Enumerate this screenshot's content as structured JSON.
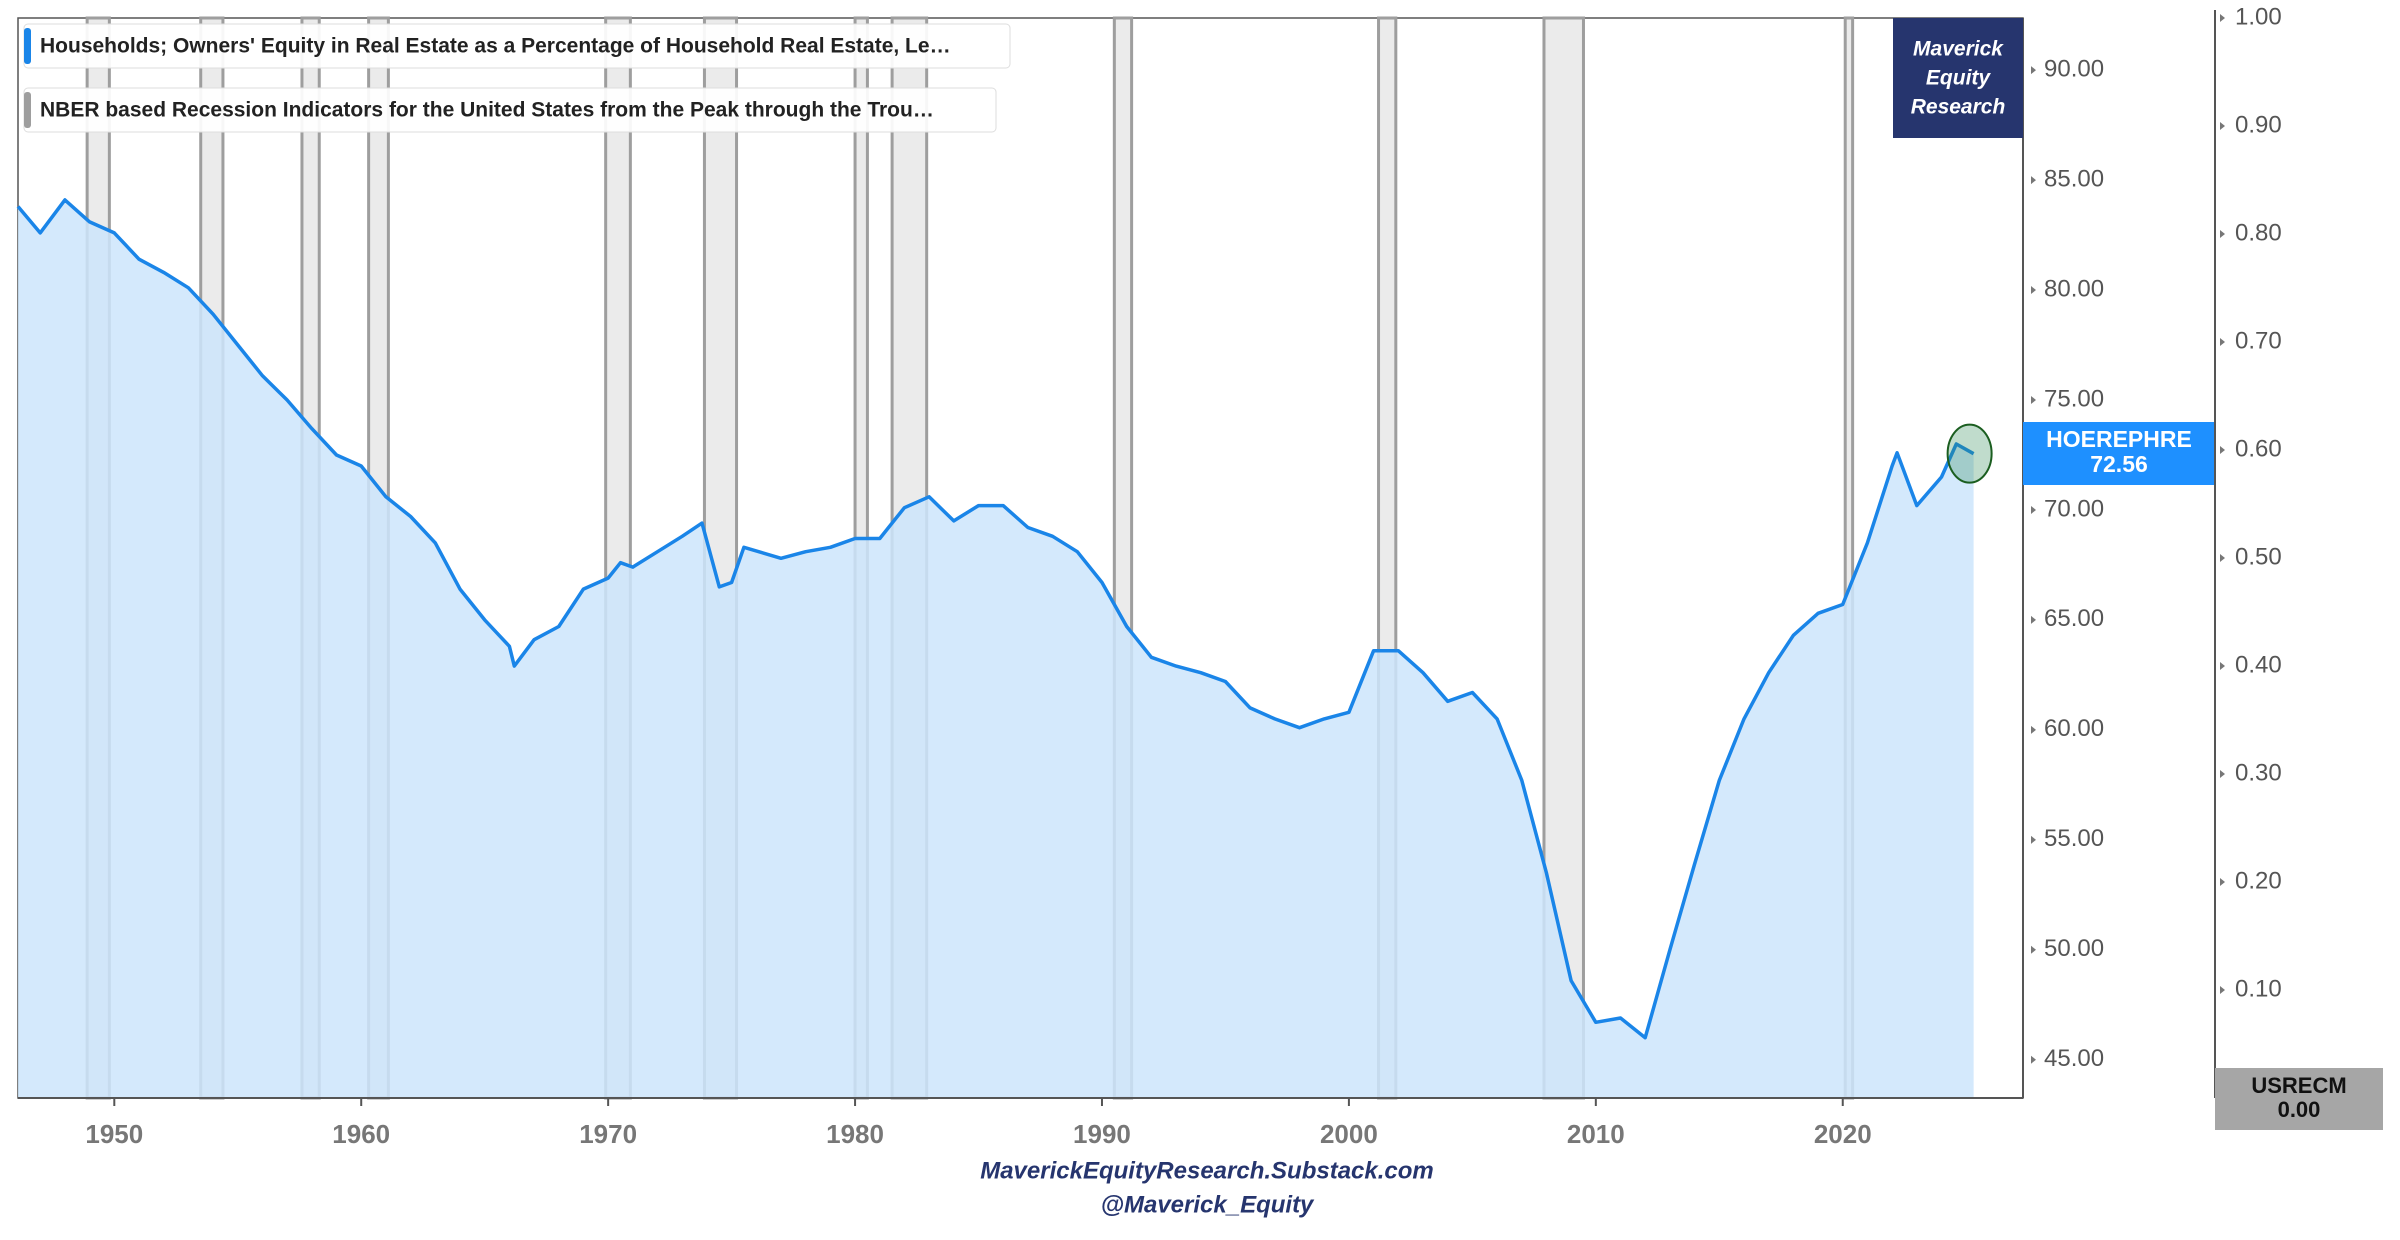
{
  "chart_data": {
    "type": "area",
    "series": [
      {
        "name": "Households; Owners' Equity in Real Estate as a Percentage of Household Real Estate, Le…",
        "color": "#1a85e8",
        "fill": "#cde5fb",
        "x": [
          1946.1,
          1947,
          1948,
          1949,
          1950,
          1951,
          1952,
          1953,
          1954,
          1955,
          1956,
          1957,
          1958,
          1959,
          1960,
          1961,
          1962,
          1963,
          1964,
          1965,
          1966,
          1966.2,
          1967,
          1968,
          1969,
          1970,
          1970.5,
          1971,
          1972,
          1973,
          1973.8,
          1974.5,
          1975,
          1975.5,
          1977,
          1978,
          1979,
          1980,
          1981,
          1982,
          1983,
          1984,
          1985,
          1986,
          1987,
          1988,
          1989,
          1990,
          1991,
          1992,
          1993,
          1994,
          1995,
          1996,
          1997,
          1998,
          1999,
          2000,
          2001,
          2002,
          2003,
          2004,
          2005,
          2006,
          2007,
          2008,
          2009,
          2010,
          2011,
          2012,
          2013,
          2014,
          2015,
          2016,
          2017,
          2018,
          2019,
          2020,
          2021,
          2022,
          2022.2,
          2023,
          2024,
          2024.6,
          2025.3
        ],
        "values": [
          83.8,
          82.6,
          84.1,
          83.1,
          82.6,
          81.4,
          80.8,
          80.1,
          78.9,
          77.5,
          76.1,
          75.0,
          73.7,
          72.5,
          72.0,
          70.6,
          69.7,
          68.5,
          66.4,
          65.0,
          63.8,
          62.9,
          64.1,
          64.7,
          66.4,
          66.9,
          67.6,
          67.4,
          68.1,
          68.8,
          69.4,
          66.5,
          66.7,
          68.3,
          67.8,
          68.1,
          68.3,
          68.7,
          68.7,
          70.1,
          70.6,
          69.5,
          70.2,
          70.2,
          69.2,
          68.8,
          68.1,
          66.7,
          64.7,
          63.3,
          62.9,
          62.6,
          62.2,
          61.0,
          60.5,
          60.1,
          60.5,
          60.8,
          63.6,
          63.6,
          62.6,
          61.3,
          61.7,
          60.5,
          57.7,
          53.5,
          48.6,
          46.7,
          46.9,
          46.0,
          50.0,
          53.9,
          57.7,
          60.5,
          62.6,
          64.3,
          65.3,
          65.7,
          68.5,
          72.0,
          72.6,
          70.2,
          71.5,
          73.0,
          72.56
        ]
      },
      {
        "name": "NBER based Recession Indicators for the United States from the Peak through the Trou…",
        "color": "#9e9e9e",
        "fill": "#ebebeb",
        "axis": "y2",
        "starts": [
          1948.9,
          1953.5,
          1957.6,
          1960.3,
          1969.9,
          1973.9,
          1980.0,
          1981.5,
          1990.5,
          2001.2,
          2007.9,
          2020.1
        ],
        "ends": [
          1949.8,
          1954.4,
          1958.3,
          1961.1,
          1970.9,
          1975.2,
          1980.5,
          1982.9,
          1991.2,
          2001.9,
          2009.5,
          2020.4
        ],
        "values": [
          1,
          1,
          1,
          1,
          1,
          1,
          1,
          1,
          1,
          1,
          1,
          1
        ]
      }
    ],
    "last_value_labels": [
      {
        "id": "HOEREPHRE",
        "label": "72.56"
      },
      {
        "id": "USRECM",
        "label": "0.00"
      }
    ],
    "xlim": [
      1946.1,
      2027.3
    ],
    "xticks": [
      1950,
      1960,
      1970,
      1980,
      1990,
      2000,
      2010,
      2020
    ],
    "ylim": [
      43.26,
      92.37
    ],
    "yticks": [
      {
        "value": 45,
        "label": "45.00"
      },
      {
        "value": 50,
        "label": "50.00"
      },
      {
        "value": 55,
        "label": "55.00"
      },
      {
        "value": 60,
        "label": "60.00"
      },
      {
        "value": 65,
        "label": "65.00"
      },
      {
        "value": 70,
        "label": "70.00"
      },
      {
        "value": 75,
        "label": "75.00"
      },
      {
        "value": 80,
        "label": "80.00"
      },
      {
        "value": 85,
        "label": "85.00"
      },
      {
        "value": 90,
        "label": "90.00"
      }
    ],
    "y2lim": [
      0,
      1
    ],
    "y2ticks": [
      {
        "value": 0,
        "label": "0.00"
      },
      {
        "value": 0.1,
        "label": "0.10"
      },
      {
        "value": 0.2,
        "label": "0.20"
      },
      {
        "value": 0.3,
        "label": "0.30"
      },
      {
        "value": 0.4,
        "label": "0.40"
      },
      {
        "value": 0.5,
        "label": "0.50"
      },
      {
        "value": 0.6,
        "label": "0.60"
      },
      {
        "value": 0.7,
        "label": "0.70"
      },
      {
        "value": 0.8,
        "label": "0.80"
      },
      {
        "value": 0.9,
        "label": "0.90"
      },
      {
        "value": 1,
        "label": "1.00"
      }
    ],
    "watermark": [
      "Maverick",
      "Equity",
      "Research"
    ],
    "footer": [
      "MaverickEquityResearch.Substack.com",
      "@Maverick_Equity"
    ]
  }
}
